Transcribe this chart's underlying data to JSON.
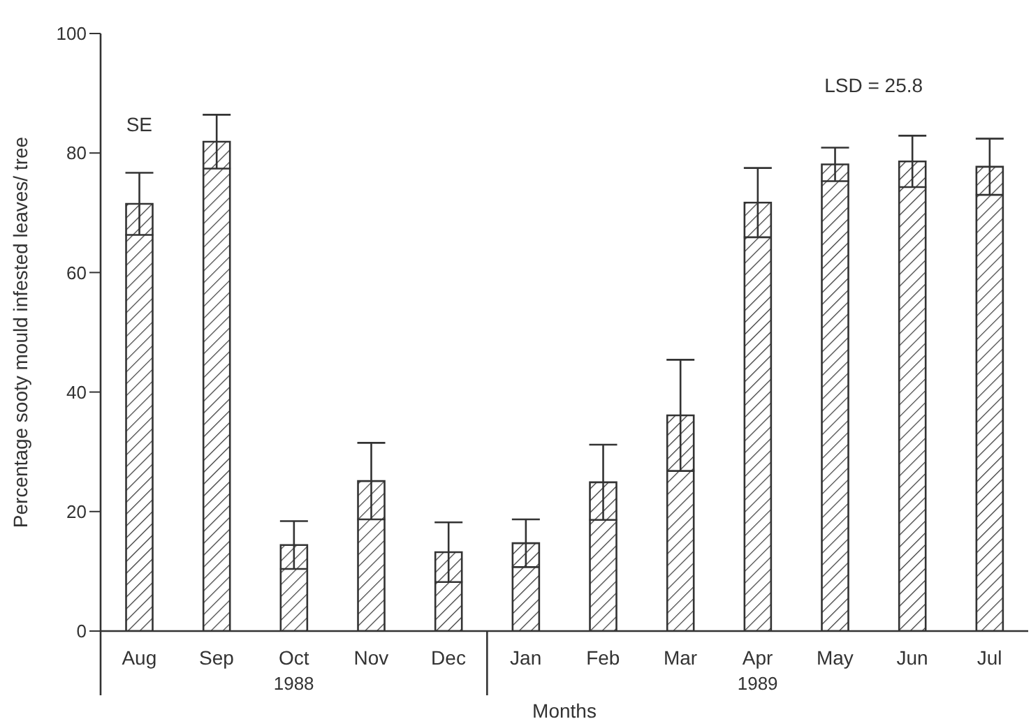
{
  "chart_data": {
    "type": "bar",
    "ylabel": "Percentage sooty mould infested leaves/ tree",
    "xlabel": "Months",
    "categories": [
      "Aug",
      "Sep",
      "Oct 1988",
      "Nov",
      "Dec",
      "Jan",
      "Feb",
      "Mar",
      "Apr 1989",
      "May",
      "Jun",
      "Jul"
    ],
    "values": [
      71.5,
      81.9,
      14.4,
      25.1,
      13.2,
      14.7,
      24.9,
      36.1,
      71.7,
      78.1,
      78.6,
      77.7
    ],
    "errors": [
      5.2,
      4.5,
      4,
      6.4,
      5,
      4,
      6.3,
      9.3,
      5.8,
      2.8,
      4.3,
      4.7
    ],
    "color": "#333333",
    "ylim": [
      0,
      100
    ],
    "yticks": [
      0,
      20,
      40,
      60,
      80,
      100
    ],
    "grid": false,
    "legend": false,
    "annotations": [
      "SE",
      "LSD = 25.8"
    ]
  }
}
